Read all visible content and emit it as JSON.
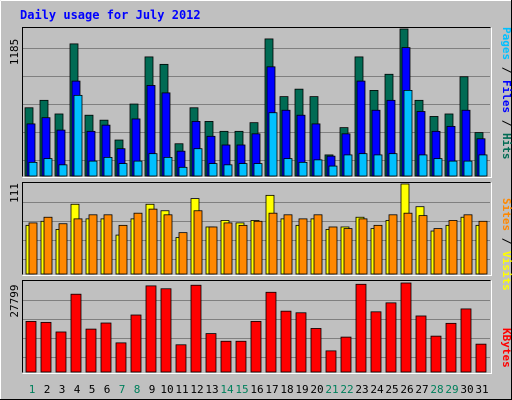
{
  "title": "Daily usage for July 2012",
  "colors": {
    "background": "#C0C0C0",
    "hits": "#006B54",
    "files": "#0000FF",
    "pages": "#00C0FF",
    "visits": "#FFFF00",
    "sites": "#FF8800",
    "kbytes": "#FF0000",
    "weekday": "#000000",
    "weekend": "#00805C",
    "grid": "#808080",
    "title": "#0000FF"
  },
  "chart_data": [
    {
      "type": "bar",
      "panel": "hits-files-pages",
      "max_label": "1185",
      "label_words": [
        "Pages",
        "Files",
        "Hits"
      ],
      "ylim": [
        0,
        1185
      ],
      "categories": [
        "1",
        "2",
        "3",
        "4",
        "5",
        "6",
        "7",
        "8",
        "9",
        "10",
        "11",
        "12",
        "13",
        "14",
        "15",
        "16",
        "17",
        "18",
        "19",
        "20",
        "21",
        "22",
        "23",
        "24",
        "25",
        "26",
        "27",
        "28",
        "29",
        "30",
        "31"
      ],
      "series": [
        {
          "name": "Hits",
          "values": [
            550,
            610,
            500,
            1065,
            490,
            450,
            290,
            580,
            960,
            900,
            260,
            550,
            440,
            360,
            360,
            430,
            1105,
            640,
            700,
            640,
            170,
            390,
            960,
            690,
            820,
            1185,
            610,
            480,
            500,
            800,
            350
          ]
        },
        {
          "name": "Files",
          "values": [
            420,
            470,
            370,
            765,
            360,
            410,
            220,
            460,
            730,
            670,
            200,
            440,
            320,
            250,
            250,
            340,
            880,
            530,
            490,
            420,
            160,
            340,
            765,
            530,
            610,
            1035,
            520,
            360,
            400,
            530,
            300
          ]
        },
        {
          "name": "Pages",
          "values": [
            110,
            140,
            90,
            650,
            120,
            150,
            100,
            120,
            180,
            150,
            70,
            220,
            100,
            90,
            100,
            100,
            510,
            140,
            110,
            130,
            80,
            170,
            180,
            170,
            180,
            690,
            170,
            140,
            120,
            120,
            170
          ]
        }
      ]
    },
    {
      "type": "bar",
      "panel": "visits-sites",
      "max_label": "111",
      "label_words": [
        "Sites",
        "Visits"
      ],
      "ylim": [
        0,
        111
      ],
      "categories": [
        "1",
        "2",
        "3",
        "4",
        "5",
        "6",
        "7",
        "8",
        "9",
        "10",
        "11",
        "12",
        "13",
        "14",
        "15",
        "16",
        "17",
        "18",
        "19",
        "20",
        "21",
        "22",
        "23",
        "24",
        "25",
        "26",
        "27",
        "28",
        "29",
        "30",
        "31"
      ],
      "series": [
        {
          "name": "Visits",
          "values": [
            60,
            65,
            55,
            86,
            68,
            68,
            48,
            68,
            86,
            78,
            45,
            93,
            58,
            66,
            63,
            66,
            97,
            68,
            60,
            68,
            55,
            58,
            70,
            56,
            66,
            111,
            83,
            53,
            60,
            70,
            60
          ]
        },
        {
          "name": "Sites",
          "values": [
            63,
            70,
            62,
            68,
            73,
            73,
            60,
            75,
            80,
            73,
            51,
            78,
            58,
            63,
            60,
            65,
            75,
            73,
            68,
            73,
            58,
            56,
            68,
            60,
            73,
            75,
            72,
            56,
            66,
            73,
            65
          ]
        }
      ]
    },
    {
      "type": "bar",
      "panel": "kbytes",
      "max_label": "27799",
      "label_words": [
        "KBytes"
      ],
      "ylim": [
        0,
        27799
      ],
      "categories": [
        "1",
        "2",
        "3",
        "4",
        "5",
        "6",
        "7",
        "8",
        "9",
        "10",
        "11",
        "12",
        "13",
        "14",
        "15",
        "16",
        "17",
        "18",
        "19",
        "20",
        "21",
        "22",
        "23",
        "24",
        "25",
        "26",
        "27",
        "28",
        "29",
        "30",
        "31"
      ],
      "series": [
        {
          "name": "KBytes",
          "values": [
            15800,
            15500,
            12500,
            24300,
            13400,
            15300,
            9100,
            17800,
            26900,
            26000,
            8500,
            27100,
            12000,
            9600,
            9600,
            15800,
            24900,
            19000,
            18500,
            13600,
            6600,
            10900,
            27400,
            18800,
            21600,
            27799,
            17500,
            11200,
            15200,
            19700,
            8700
          ]
        }
      ]
    }
  ],
  "weekend_days": [
    "1",
    "7",
    "8",
    "14",
    "15",
    "21",
    "22",
    "28",
    "29"
  ]
}
